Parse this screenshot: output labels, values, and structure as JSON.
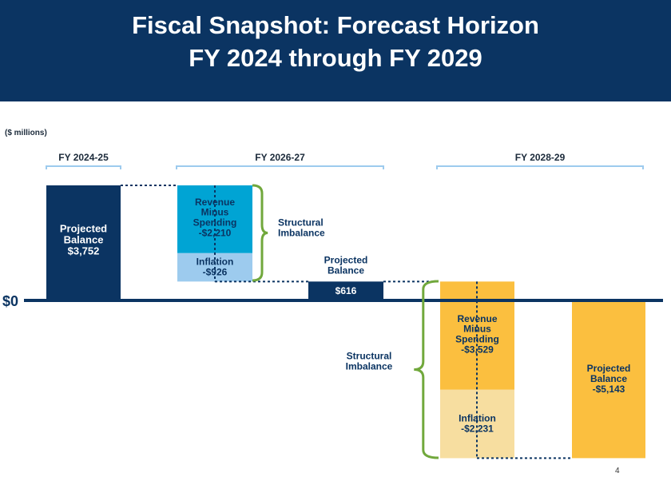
{
  "header": {
    "title_line1": "Fiscal Snapshot: Forecast Horizon",
    "title_line2": "FY 2024 through FY 2029"
  },
  "units_label": "($ millions)",
  "page_number": "4",
  "colors": {
    "header_bg": "#0b3462",
    "dark_navy": "#0b3462",
    "cyan": "#00a4d4",
    "light_blue": "#9dcbee",
    "orange": "#fbbf3f",
    "light_orange": "#f7dea0",
    "bracket_green": "#71a83c",
    "period_line": "#9dcbee"
  },
  "chart_data": {
    "type": "waterfall",
    "unit": "$ millions",
    "zero_label": "$0",
    "periods": [
      {
        "label": "FY 2024-25"
      },
      {
        "label": "FY 2026-27"
      },
      {
        "label": "FY 2028-29"
      }
    ],
    "bars": [
      {
        "id": "bal1",
        "period": "FY 2024-25",
        "kind": "balance",
        "label_lines": [
          "Projected",
          "Balance",
          "$3,752"
        ],
        "start": 0,
        "end": 3752,
        "color": "#0b3462"
      },
      {
        "id": "rms1",
        "period": "FY 2026-27",
        "kind": "change",
        "label_lines": [
          "Revenue",
          "Minus",
          "Spending",
          "-$2,210"
        ],
        "start": 3752,
        "end": 1542,
        "color": "#00a4d4"
      },
      {
        "id": "inf1",
        "period": "FY 2026-27",
        "kind": "change",
        "label_lines": [
          "Inflation",
          "-$926"
        ],
        "start": 1542,
        "end": 616,
        "color": "#9dcbee"
      },
      {
        "id": "bal2",
        "period": "FY 2026-27",
        "kind": "balance",
        "label_lines": [
          "$616"
        ],
        "start": 0,
        "end": 616,
        "color": "#0b3462"
      },
      {
        "id": "rms2",
        "period": "FY 2028-29",
        "kind": "change",
        "label_lines": [
          "Revenue",
          "Minus",
          "Spending",
          "-$3,529"
        ],
        "start": 616,
        "end": -2913,
        "color": "#fbbf3f"
      },
      {
        "id": "inf2",
        "period": "FY 2028-29",
        "kind": "change",
        "label_lines": [
          "Inflation",
          "-$2,231"
        ],
        "start": -2913,
        "end": -5144,
        "color": "#f7dea0"
      },
      {
        "id": "bal3",
        "period": "FY 2028-29",
        "kind": "balance",
        "label_lines": [
          "Projected",
          "Balance",
          "-$5,143"
        ],
        "start": 0,
        "end": -5143,
        "color": "#fbbf3f"
      }
    ],
    "annotations": [
      {
        "id": "struct1",
        "label_lines": [
          "Structural",
          "Imbalance"
        ],
        "spans": [
          "rms1",
          "inf1"
        ]
      },
      {
        "id": "pb2",
        "label_lines": [
          "Projected",
          "Balance"
        ],
        "for": "bal2"
      },
      {
        "id": "struct2",
        "label_lines": [
          "Structural",
          "Imbalance"
        ],
        "spans": [
          "rms2",
          "inf2"
        ]
      }
    ]
  }
}
